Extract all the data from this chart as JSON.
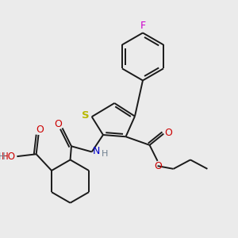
{
  "bg_color": "#ebebeb",
  "bond_color": "#1a1a1a",
  "S_color": "#b8b800",
  "N_color": "#0000cc",
  "O_color": "#cc0000",
  "F_color": "#cc00cc",
  "H_color": "#708090",
  "figsize": [
    3.0,
    3.0
  ],
  "dpi": 100,
  "xlim": [
    0,
    10
  ],
  "ylim": [
    0,
    10
  ]
}
